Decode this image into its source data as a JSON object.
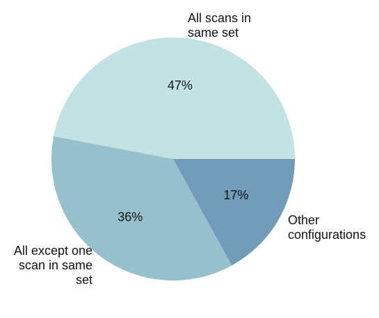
{
  "chart_data": {
    "type": "pie",
    "slices": [
      {
        "label": "All scans in\nsame set",
        "value": 47,
        "pct_label": "47%",
        "color": "#c3e2e4"
      },
      {
        "label": "All except one\nscan in same\nset",
        "value": 36,
        "pct_label": "36%",
        "color": "#97c0cd"
      },
      {
        "label": "Other\nconfigurations",
        "value": 17,
        "pct_label": "17%",
        "color": "#729bb9"
      }
    ],
    "start_angle_deg": 0,
    "direction": "counterclockwise",
    "legend": "none"
  }
}
